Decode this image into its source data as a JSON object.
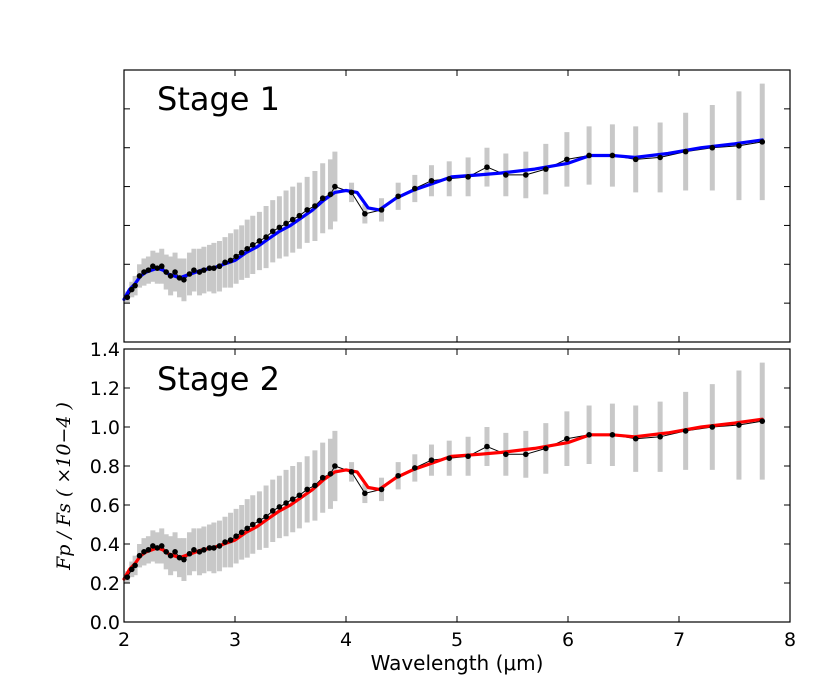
{
  "chart_data": [
    {
      "type": "line",
      "title": "Stage 1",
      "xlabel": "",
      "ylabel": "",
      "xlim": [
        2,
        8
      ],
      "ylim": [
        0.0,
        1.4
      ],
      "y_tick_labels_shown": false,
      "x_tick_labels_shown": false,
      "model_color": "#0000ff",
      "observed": {
        "x": [
          2.03,
          2.07,
          2.1,
          2.14,
          2.18,
          2.22,
          2.26,
          2.3,
          2.34,
          2.38,
          2.42,
          2.46,
          2.5,
          2.54,
          2.59,
          2.63,
          2.68,
          2.72,
          2.77,
          2.81,
          2.86,
          2.91,
          2.96,
          3.01,
          3.06,
          3.11,
          3.16,
          3.22,
          3.28,
          3.34,
          3.4,
          3.46,
          3.52,
          3.58,
          3.65,
          3.72,
          3.79,
          3.86,
          3.9,
          4.05,
          4.17,
          4.32,
          4.47,
          4.62,
          4.77,
          4.93,
          5.1,
          5.27,
          5.44,
          5.62,
          5.8,
          5.99,
          6.19,
          6.4,
          6.61,
          6.83,
          7.06,
          7.3,
          7.54,
          7.75
        ],
        "y": [
          0.23,
          0.27,
          0.29,
          0.34,
          0.36,
          0.37,
          0.39,
          0.38,
          0.39,
          0.36,
          0.34,
          0.36,
          0.33,
          0.32,
          0.35,
          0.37,
          0.36,
          0.37,
          0.38,
          0.38,
          0.39,
          0.41,
          0.42,
          0.44,
          0.46,
          0.48,
          0.5,
          0.52,
          0.54,
          0.57,
          0.59,
          0.61,
          0.63,
          0.65,
          0.68,
          0.7,
          0.74,
          0.76,
          0.8,
          0.77,
          0.66,
          0.68,
          0.75,
          0.79,
          0.83,
          0.84,
          0.85,
          0.9,
          0.86,
          0.86,
          0.89,
          0.94,
          0.96,
          0.96,
          0.94,
          0.95,
          0.98,
          1.0,
          1.01,
          1.03
        ],
        "err": [
          0.03,
          0.04,
          0.05,
          0.06,
          0.07,
          0.07,
          0.08,
          0.08,
          0.09,
          0.09,
          0.1,
          0.1,
          0.1,
          0.11,
          0.11,
          0.11,
          0.12,
          0.12,
          0.12,
          0.13,
          0.13,
          0.13,
          0.14,
          0.14,
          0.14,
          0.15,
          0.15,
          0.15,
          0.16,
          0.16,
          0.16,
          0.17,
          0.17,
          0.17,
          0.17,
          0.18,
          0.18,
          0.18,
          0.18,
          0.05,
          0.05,
          0.06,
          0.07,
          0.07,
          0.08,
          0.09,
          0.1,
          0.1,
          0.11,
          0.12,
          0.13,
          0.14,
          0.15,
          0.16,
          0.17,
          0.18,
          0.2,
          0.22,
          0.28,
          0.3
        ]
      },
      "model": {
        "x": [
          2.0,
          2.05,
          2.1,
          2.15,
          2.2,
          2.25,
          2.3,
          2.35,
          2.4,
          2.45,
          2.5,
          2.55,
          2.6,
          2.7,
          2.8,
          2.9,
          3.0,
          3.1,
          3.2,
          3.3,
          3.4,
          3.5,
          3.6,
          3.7,
          3.8,
          3.9,
          4.0,
          4.1,
          4.2,
          4.3,
          4.45,
          4.6,
          4.8,
          4.95,
          5.2,
          5.4,
          5.7,
          6.0,
          6.2,
          6.4,
          6.6,
          6.9,
          7.2,
          7.5,
          7.75
        ],
        "y": [
          0.22,
          0.27,
          0.3,
          0.34,
          0.36,
          0.37,
          0.38,
          0.37,
          0.35,
          0.34,
          0.33,
          0.34,
          0.35,
          0.37,
          0.38,
          0.4,
          0.42,
          0.46,
          0.49,
          0.53,
          0.57,
          0.6,
          0.64,
          0.68,
          0.73,
          0.77,
          0.78,
          0.77,
          0.69,
          0.68,
          0.74,
          0.78,
          0.82,
          0.85,
          0.86,
          0.87,
          0.89,
          0.92,
          0.96,
          0.96,
          0.95,
          0.97,
          1.0,
          1.02,
          1.04
        ]
      }
    },
    {
      "type": "line",
      "title": "Stage 2",
      "xlabel": "Wavelength (μm)",
      "ylabel": "Fp / Fs ( ×10−4 )",
      "xlim": [
        2,
        8
      ],
      "ylim": [
        0.0,
        1.4
      ],
      "x_ticks": [
        "2",
        "3",
        "4",
        "5",
        "6",
        "7",
        "8"
      ],
      "y_ticks": [
        "0.0",
        "0.2",
        "0.4",
        "0.6",
        "0.8",
        "1.0",
        "1.2",
        "1.4"
      ],
      "model_color": "#ff0000",
      "observed": {
        "x": [
          2.03,
          2.07,
          2.1,
          2.14,
          2.18,
          2.22,
          2.26,
          2.3,
          2.34,
          2.38,
          2.42,
          2.46,
          2.5,
          2.54,
          2.59,
          2.63,
          2.68,
          2.72,
          2.77,
          2.81,
          2.86,
          2.91,
          2.96,
          3.01,
          3.06,
          3.11,
          3.16,
          3.22,
          3.28,
          3.34,
          3.4,
          3.46,
          3.52,
          3.58,
          3.65,
          3.72,
          3.79,
          3.86,
          3.9,
          4.05,
          4.17,
          4.32,
          4.47,
          4.62,
          4.77,
          4.93,
          5.1,
          5.27,
          5.44,
          5.62,
          5.8,
          5.99,
          6.19,
          6.4,
          6.61,
          6.83,
          7.06,
          7.3,
          7.54,
          7.75
        ],
        "y": [
          0.23,
          0.27,
          0.29,
          0.34,
          0.36,
          0.37,
          0.39,
          0.38,
          0.39,
          0.36,
          0.34,
          0.36,
          0.33,
          0.32,
          0.35,
          0.37,
          0.36,
          0.37,
          0.38,
          0.38,
          0.39,
          0.41,
          0.42,
          0.44,
          0.46,
          0.48,
          0.5,
          0.52,
          0.54,
          0.57,
          0.59,
          0.61,
          0.63,
          0.65,
          0.68,
          0.7,
          0.74,
          0.76,
          0.8,
          0.77,
          0.66,
          0.68,
          0.75,
          0.79,
          0.83,
          0.84,
          0.85,
          0.9,
          0.86,
          0.86,
          0.89,
          0.94,
          0.96,
          0.96,
          0.94,
          0.95,
          0.98,
          1.0,
          1.01,
          1.03
        ],
        "err": [
          0.03,
          0.04,
          0.05,
          0.06,
          0.07,
          0.07,
          0.08,
          0.08,
          0.09,
          0.09,
          0.1,
          0.1,
          0.1,
          0.11,
          0.11,
          0.11,
          0.12,
          0.12,
          0.12,
          0.13,
          0.13,
          0.13,
          0.14,
          0.14,
          0.14,
          0.15,
          0.15,
          0.15,
          0.16,
          0.16,
          0.16,
          0.17,
          0.17,
          0.17,
          0.17,
          0.18,
          0.18,
          0.18,
          0.18,
          0.05,
          0.05,
          0.06,
          0.07,
          0.07,
          0.08,
          0.09,
          0.1,
          0.1,
          0.11,
          0.12,
          0.13,
          0.14,
          0.15,
          0.16,
          0.17,
          0.18,
          0.2,
          0.22,
          0.28,
          0.3
        ]
      },
      "model": {
        "x": [
          2.0,
          2.05,
          2.1,
          2.15,
          2.2,
          2.25,
          2.3,
          2.35,
          2.4,
          2.45,
          2.5,
          2.55,
          2.6,
          2.7,
          2.8,
          2.9,
          3.0,
          3.1,
          3.2,
          3.3,
          3.4,
          3.5,
          3.6,
          3.7,
          3.8,
          3.9,
          4.0,
          4.1,
          4.2,
          4.3,
          4.45,
          4.6,
          4.8,
          4.95,
          5.2,
          5.4,
          5.7,
          6.0,
          6.2,
          6.4,
          6.6,
          6.9,
          7.2,
          7.5,
          7.75
        ],
        "y": [
          0.22,
          0.27,
          0.3,
          0.34,
          0.36,
          0.37,
          0.38,
          0.37,
          0.35,
          0.34,
          0.33,
          0.34,
          0.35,
          0.37,
          0.38,
          0.4,
          0.42,
          0.46,
          0.49,
          0.53,
          0.57,
          0.6,
          0.64,
          0.68,
          0.73,
          0.77,
          0.78,
          0.77,
          0.69,
          0.68,
          0.74,
          0.78,
          0.82,
          0.85,
          0.86,
          0.87,
          0.89,
          0.92,
          0.96,
          0.96,
          0.95,
          0.97,
          1.0,
          1.02,
          1.04
        ]
      }
    }
  ],
  "colors": {
    "errorbar": "#c8c8c8",
    "points": "#000000"
  }
}
